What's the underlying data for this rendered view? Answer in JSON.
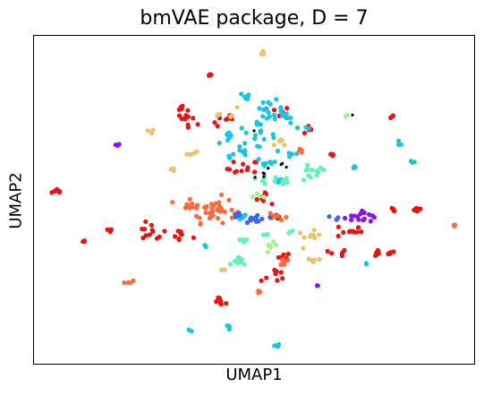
{
  "chart_data": {
    "type": "scatter",
    "title": "bmVAE package, D = 7",
    "xlabel": "UMAP1",
    "ylabel": "UMAP2",
    "xticks": "none",
    "yticks": "none",
    "legend": "none",
    "grid": false,
    "xlim": [
      0,
      100
    ],
    "ylim": [
      0,
      100
    ],
    "colors": {
      "red": "#ee1111",
      "orange": "#ff6a3d",
      "sand": "#ecc26e",
      "cyan": "#18c6e2",
      "mint": "#5ff3b8",
      "lightgreen": "#a3f18f",
      "blue": "#3a66ef",
      "purple": "#8a11f5",
      "black": "#000000"
    },
    "clusters": [
      {
        "color": "red",
        "x": 5.5,
        "y": 52.5,
        "spread": 0.7,
        "n": 8
      },
      {
        "color": "red",
        "x": 40.0,
        "y": 88.2,
        "spread": 0.3,
        "n": 3
      },
      {
        "color": "red",
        "x": 33.0,
        "y": 78.0,
        "spread": 0.6,
        "n": 5
      },
      {
        "color": "red",
        "x": 35.5,
        "y": 75.0,
        "spread": 1.5,
        "n": 10
      },
      {
        "color": "red",
        "x": 43.5,
        "y": 74.0,
        "spread": 1.5,
        "n": 7
      },
      {
        "color": "red",
        "x": 47.5,
        "y": 59.5,
        "spread": 1.8,
        "n": 12
      },
      {
        "color": "red",
        "x": 53.0,
        "y": 51.0,
        "spread": 1.5,
        "n": 8
      },
      {
        "color": "red",
        "x": 55.5,
        "y": 76.5,
        "spread": 1.3,
        "n": 6
      },
      {
        "color": "red",
        "x": 61.5,
        "y": 71.5,
        "spread": 1.0,
        "n": 5
      },
      {
        "color": "red",
        "x": 26.5,
        "y": 40.0,
        "spread": 1.8,
        "n": 12
      },
      {
        "color": "red",
        "x": 33.5,
        "y": 39.0,
        "spread": 1.3,
        "n": 8
      },
      {
        "color": "red",
        "x": 16.5,
        "y": 40.5,
        "spread": 0.7,
        "n": 5
      },
      {
        "color": "red",
        "x": 11.5,
        "y": 37.0,
        "spread": 0.4,
        "n": 3
      },
      {
        "color": "red",
        "x": 42.8,
        "y": 18.8,
        "spread": 0.8,
        "n": 7
      },
      {
        "color": "red",
        "x": 54.5,
        "y": 27.0,
        "spread": 1.5,
        "n": 8
      },
      {
        "color": "red",
        "x": 55.5,
        "y": 45.0,
        "spread": 0.7,
        "n": 4
      },
      {
        "color": "red",
        "x": 71.5,
        "y": 40.5,
        "spread": 1.5,
        "n": 10
      },
      {
        "color": "red",
        "x": 69.0,
        "y": 33.5,
        "spread": 1.0,
        "n": 6
      },
      {
        "color": "red",
        "x": 77.5,
        "y": 34.0,
        "spread": 0.8,
        "n": 6
      },
      {
        "color": "red",
        "x": 81.5,
        "y": 47.0,
        "spread": 0.5,
        "n": 4
      },
      {
        "color": "red",
        "x": 87.0,
        "y": 47.0,
        "spread": 0.6,
        "n": 5
      },
      {
        "color": "red",
        "x": 81.0,
        "y": 34.0,
        "spread": 0.6,
        "n": 5
      },
      {
        "color": "red",
        "x": 81.5,
        "y": 75.5,
        "spread": 0.5,
        "n": 4
      },
      {
        "color": "red",
        "x": 68.0,
        "y": 63.5,
        "spread": 0.6,
        "n": 4
      },
      {
        "color": "red",
        "x": 57.5,
        "y": 33.0,
        "spread": 0.9,
        "n": 5
      },
      {
        "color": "orange",
        "x": 40.5,
        "y": 47.0,
        "spread": 2.6,
        "n": 35
      },
      {
        "color": "orange",
        "x": 35.5,
        "y": 48.0,
        "spread": 1.3,
        "n": 9
      },
      {
        "color": "orange",
        "x": 55.5,
        "y": 45.0,
        "spread": 1.0,
        "n": 6
      },
      {
        "color": "orange",
        "x": 56.5,
        "y": 31.0,
        "spread": 1.1,
        "n": 7
      },
      {
        "color": "orange",
        "x": 21.5,
        "y": 25.0,
        "spread": 0.5,
        "n": 4
      },
      {
        "color": "orange",
        "x": 50.5,
        "y": 22.0,
        "spread": 0.3,
        "n": 3
      },
      {
        "color": "orange",
        "x": 95.5,
        "y": 42.0,
        "spread": 0.5,
        "n": 4
      },
      {
        "color": "orange",
        "x": 61.0,
        "y": 65.0,
        "spread": 0.8,
        "n": 4
      },
      {
        "color": "sand",
        "x": 52.0,
        "y": 94.8,
        "spread": 0.4,
        "n": 5
      },
      {
        "color": "sand",
        "x": 43.5,
        "y": 76.5,
        "spread": 1.3,
        "n": 6
      },
      {
        "color": "sand",
        "x": 27.0,
        "y": 71.0,
        "spread": 0.4,
        "n": 3
      },
      {
        "color": "sand",
        "x": 35.5,
        "y": 64.5,
        "spread": 0.9,
        "n": 5
      },
      {
        "color": "sand",
        "x": 32.0,
        "y": 59.5,
        "spread": 0.6,
        "n": 3
      },
      {
        "color": "sand",
        "x": 56.5,
        "y": 67.0,
        "spread": 1.0,
        "n": 5
      },
      {
        "color": "sand",
        "x": 62.5,
        "y": 38.5,
        "spread": 1.3,
        "n": 9
      },
      {
        "color": "sand",
        "x": 63.5,
        "y": 32.0,
        "spread": 1.0,
        "n": 5
      },
      {
        "color": "sand",
        "x": 43.0,
        "y": 28.5,
        "spread": 0.4,
        "n": 3
      },
      {
        "color": "cyan",
        "x": 48.5,
        "y": 81.5,
        "spread": 0.8,
        "n": 6
      },
      {
        "color": "cyan",
        "x": 53.5,
        "y": 78.0,
        "spread": 1.6,
        "n": 14
      },
      {
        "color": "cyan",
        "x": 57.0,
        "y": 75.0,
        "spread": 1.4,
        "n": 10
      },
      {
        "color": "cyan",
        "x": 50.0,
        "y": 69.5,
        "spread": 2.4,
        "n": 18
      },
      {
        "color": "cyan",
        "x": 44.5,
        "y": 69.0,
        "spread": 1.2,
        "n": 8
      },
      {
        "color": "cyan",
        "x": 46.5,
        "y": 64.0,
        "spread": 1.4,
        "n": 8
      },
      {
        "color": "cyan",
        "x": 53.0,
        "y": 61.5,
        "spread": 1.4,
        "n": 8
      },
      {
        "color": "cyan",
        "x": 58.5,
        "y": 64.0,
        "spread": 1.0,
        "n": 5
      },
      {
        "color": "cyan",
        "x": 55.5,
        "y": 56.0,
        "spread": 0.8,
        "n": 4
      },
      {
        "color": "cyan",
        "x": 61.5,
        "y": 72.0,
        "spread": 0.8,
        "n": 4
      },
      {
        "color": "cyan",
        "x": 73.0,
        "y": 60.0,
        "spread": 0.4,
        "n": 3
      },
      {
        "color": "cyan",
        "x": 86.0,
        "y": 61.5,
        "spread": 0.4,
        "n": 3
      },
      {
        "color": "cyan",
        "x": 83.0,
        "y": 67.0,
        "spread": 0.4,
        "n": 3
      },
      {
        "color": "cyan",
        "x": 48.0,
        "y": 44.5,
        "spread": 1.0,
        "n": 5
      },
      {
        "color": "cyan",
        "x": 39.0,
        "y": 36.0,
        "spread": 0.3,
        "n": 3
      },
      {
        "color": "cyan",
        "x": 44.0,
        "y": 11.0,
        "spread": 0.4,
        "n": 3
      },
      {
        "color": "cyan",
        "x": 55.0,
        "y": 5.5,
        "spread": 0.4,
        "n": 5
      },
      {
        "color": "cyan",
        "x": 35.5,
        "y": 10.0,
        "spread": 0.3,
        "n": 2
      },
      {
        "color": "cyan",
        "x": 75.5,
        "y": 30.5,
        "spread": 0.3,
        "n": 2
      },
      {
        "color": "mint",
        "x": 63.0,
        "y": 58.0,
        "spread": 1.8,
        "n": 12
      },
      {
        "color": "mint",
        "x": 56.5,
        "y": 55.5,
        "spread": 1.2,
        "n": 8
      },
      {
        "color": "mint",
        "x": 51.0,
        "y": 56.0,
        "spread": 1.0,
        "n": 5
      },
      {
        "color": "mint",
        "x": 47.0,
        "y": 31.0,
        "spread": 0.9,
        "n": 8
      },
      {
        "color": "mint",
        "x": 47.5,
        "y": 38.0,
        "spread": 0.7,
        "n": 4
      },
      {
        "color": "mint",
        "x": 58.0,
        "y": 40.0,
        "spread": 0.5,
        "n": 3
      },
      {
        "color": "mint",
        "x": 52.5,
        "y": 39.0,
        "spread": 0.5,
        "n": 3
      },
      {
        "color": "lightgreen",
        "x": 54.0,
        "y": 35.0,
        "spread": 1.2,
        "n": 7
      },
      {
        "color": "lightgreen",
        "x": 51.5,
        "y": 51.5,
        "spread": 0.8,
        "n": 4
      },
      {
        "color": "lightgreen",
        "x": 71.5,
        "y": 76.0,
        "spread": 0.3,
        "n": 2
      },
      {
        "color": "blue",
        "x": 50.5,
        "y": 44.0,
        "spread": 1.3,
        "n": 14
      },
      {
        "color": "blue",
        "x": 46.5,
        "y": 45.5,
        "spread": 0.6,
        "n": 4
      },
      {
        "color": "blue",
        "x": 68.5,
        "y": 44.5,
        "spread": 0.5,
        "n": 3
      },
      {
        "color": "purple",
        "x": 19.0,
        "y": 66.5,
        "spread": 0.3,
        "n": 3
      },
      {
        "color": "purple",
        "x": 75.0,
        "y": 45.5,
        "spread": 1.5,
        "n": 12
      },
      {
        "color": "purple",
        "x": 72.0,
        "y": 44.5,
        "spread": 0.6,
        "n": 4
      },
      {
        "color": "purple",
        "x": 64.5,
        "y": 24.0,
        "spread": 0.2,
        "n": 2
      },
      {
        "color": "black",
        "x": 52.5,
        "y": 57.5,
        "spread": 1.2,
        "n": 5
      },
      {
        "color": "black",
        "x": 57.0,
        "y": 61.0,
        "spread": 0.8,
        "n": 3
      },
      {
        "color": "black",
        "x": 72.5,
        "y": 76.0,
        "spread": 0.2,
        "n": 1
      },
      {
        "color": "black",
        "x": 50.5,
        "y": 71.5,
        "spread": 0.3,
        "n": 1
      }
    ]
  }
}
